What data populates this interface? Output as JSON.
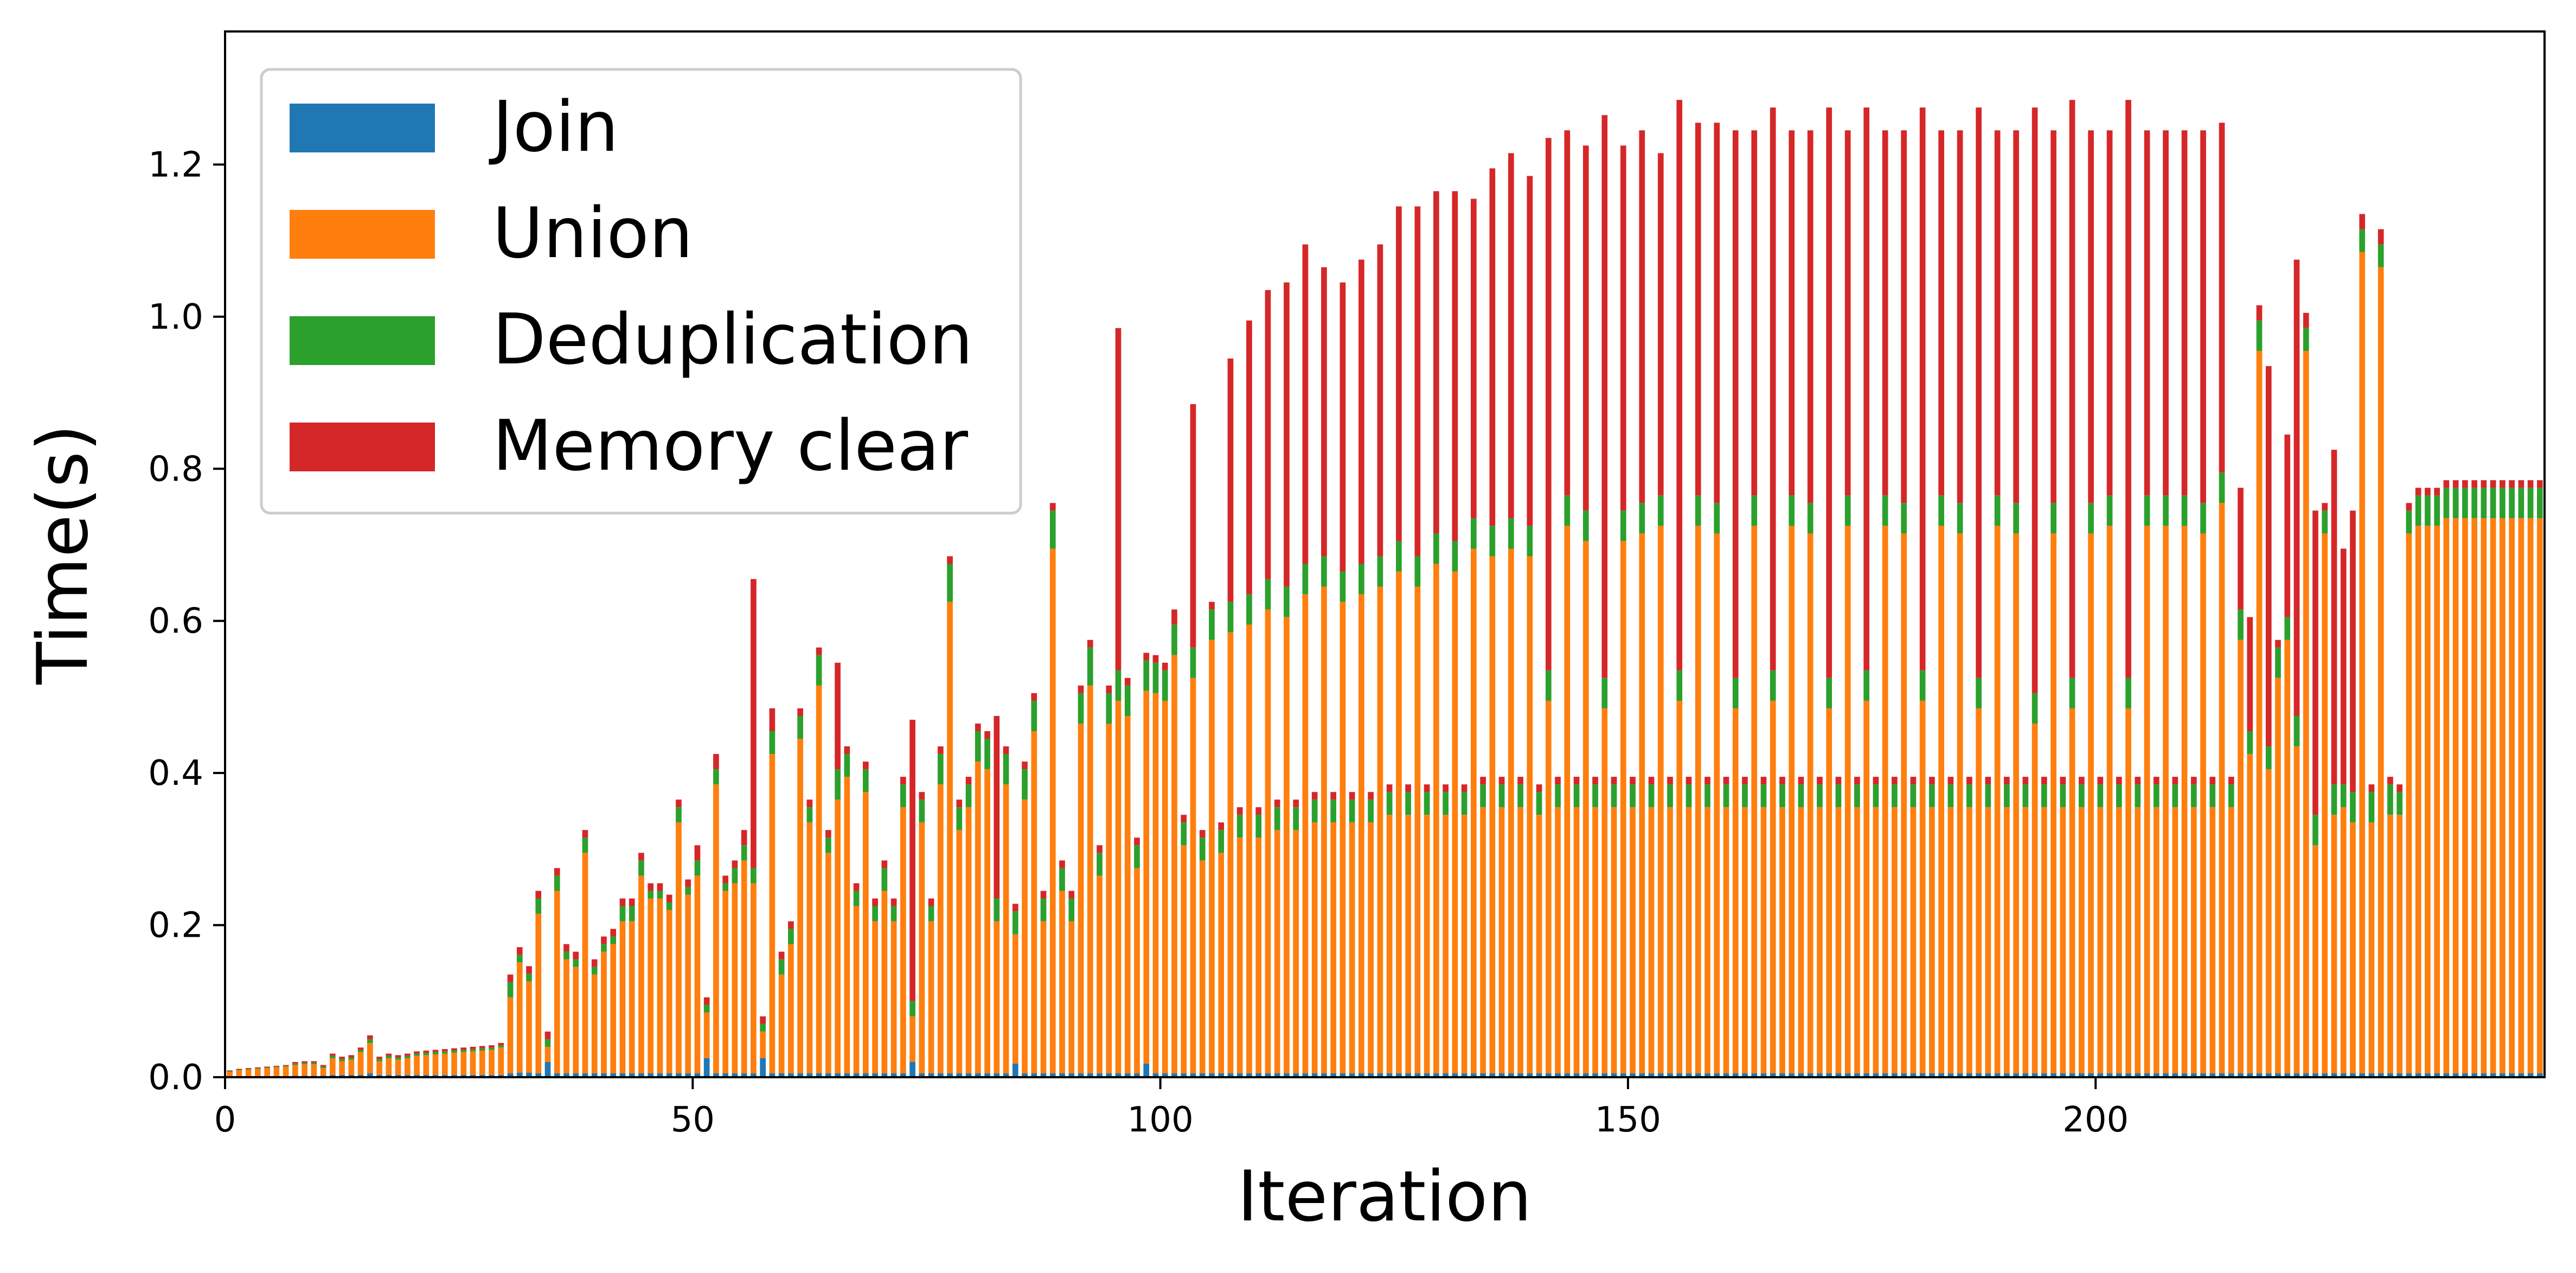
{
  "chart_data": {
    "type": "bar",
    "stacked": true,
    "xlabel": "Iteration",
    "ylabel": "Time(s)",
    "xlim": [
      0,
      248
    ],
    "ylim": [
      0,
      1.375
    ],
    "x_ticks": [
      0,
      50,
      100,
      150,
      200
    ],
    "y_ticks": [
      0.0,
      0.2,
      0.4,
      0.6,
      0.8,
      1.0,
      1.2
    ],
    "y_tick_labels": [
      "0.0",
      "0.2",
      "0.4",
      "0.6",
      "0.8",
      "1.0",
      "1.2"
    ],
    "grid": false,
    "legend_position": "upper-left",
    "series": [
      {
        "name": "Join",
        "color": "#1f77b4",
        "values": [
          0.001,
          0.001,
          0.001,
          0.001,
          0.001,
          0.001,
          0.001,
          0.002,
          0.002,
          0.002,
          0.002,
          0.003,
          0.003,
          0.003,
          0.003,
          0.005,
          0.003,
          0.003,
          0.003,
          0.003,
          0.003,
          0.003,
          0.003,
          0.003,
          0.003,
          0.003,
          0.003,
          0.003,
          0.003,
          0.003,
          0.005,
          0.006,
          0.006,
          0.005,
          0.02,
          0.005,
          0.005,
          0.005,
          0.005,
          0.005,
          0.005,
          0.005,
          0.005,
          0.005,
          0.005,
          0.005,
          0.005,
          0.005,
          0.005,
          0.005,
          0.005,
          0.025,
          0.005,
          0.005,
          0.005,
          0.005,
          0.005,
          0.025,
          0.005,
          0.005,
          0.005,
          0.005,
          0.005,
          0.005,
          0.005,
          0.005,
          0.005,
          0.005,
          0.005,
          0.005,
          0.005,
          0.005,
          0.005,
          0.02,
          0.005,
          0.005,
          0.005,
          0.005,
          0.005,
          0.005,
          0.005,
          0.005,
          0.005,
          0.005,
          0.018,
          0.005,
          0.005,
          0.005,
          0.005,
          0.005,
          0.005,
          0.005,
          0.005,
          0.005,
          0.005,
          0.005,
          0.005,
          0.005,
          0.018,
          0.005,
          0.005,
          0.005,
          0.005,
          0.005,
          0.005,
          0.005,
          0.005,
          0.005,
          0.005,
          0.005,
          0.005,
          0.005,
          0.005,
          0.005,
          0.005,
          0.005,
          0.005,
          0.005,
          0.005,
          0.005,
          0.005,
          0.005,
          0.005,
          0.005,
          0.005,
          0.005,
          0.005,
          0.005,
          0.005,
          0.005,
          0.005,
          0.005,
          0.005,
          0.005,
          0.005,
          0.005,
          0.005,
          0.005,
          0.005,
          0.005,
          0.005,
          0.005,
          0.005,
          0.005,
          0.005,
          0.005,
          0.005,
          0.005,
          0.005,
          0.005,
          0.005,
          0.005,
          0.005,
          0.005,
          0.005,
          0.005,
          0.005,
          0.005,
          0.005,
          0.005,
          0.005,
          0.005,
          0.005,
          0.005,
          0.005,
          0.005,
          0.005,
          0.005,
          0.005,
          0.005,
          0.005,
          0.005,
          0.005,
          0.005,
          0.005,
          0.005,
          0.005,
          0.005,
          0.005,
          0.005,
          0.005,
          0.005,
          0.005,
          0.005,
          0.005,
          0.005,
          0.005,
          0.005,
          0.005,
          0.005,
          0.005,
          0.005,
          0.005,
          0.005,
          0.005,
          0.005,
          0.005,
          0.005,
          0.005,
          0.005,
          0.005,
          0.005,
          0.005,
          0.005,
          0.005,
          0.005,
          0.005,
          0.005,
          0.005,
          0.005,
          0.005,
          0.005,
          0.005,
          0.005,
          0.005,
          0.005,
          0.005,
          0.005,
          0.005,
          0.005,
          0.005,
          0.005,
          0.005,
          0.005,
          0.005,
          0.005,
          0.005,
          0.005,
          0.005,
          0.005,
          0.005,
          0.005,
          0.005,
          0.005,
          0.005,
          0.005,
          0.005,
          0.005,
          0.005,
          0.005,
          0.005,
          0.005,
          0.005,
          0.005,
          0.005,
          0.005,
          0.005,
          0.005
        ]
      },
      {
        "name": "Union",
        "color": "#ff7f0e",
        "values": [
          0.006,
          0.008,
          0.009,
          0.01,
          0.011,
          0.012,
          0.013,
          0.014,
          0.015,
          0.015,
          0.01,
          0.022,
          0.018,
          0.02,
          0.03,
          0.04,
          0.018,
          0.022,
          0.02,
          0.022,
          0.025,
          0.026,
          0.027,
          0.028,
          0.029,
          0.03,
          0.031,
          0.032,
          0.033,
          0.036,
          0.1,
          0.145,
          0.12,
          0.21,
          0.02,
          0.24,
          0.15,
          0.14,
          0.29,
          0.13,
          0.16,
          0.17,
          0.2,
          0.2,
          0.26,
          0.23,
          0.23,
          0.215,
          0.33,
          0.235,
          0.26,
          0.06,
          0.38,
          0.24,
          0.25,
          0.28,
          0.25,
          0.035,
          0.42,
          0.13,
          0.17,
          0.44,
          0.33,
          0.51,
          0.29,
          0.36,
          0.39,
          0.22,
          0.37,
          0.2,
          0.24,
          0.2,
          0.35,
          0.06,
          0.33,
          0.2,
          0.38,
          0.62,
          0.32,
          0.35,
          0.41,
          0.4,
          0.2,
          0.38,
          0.17,
          0.36,
          0.45,
          0.2,
          0.69,
          0.24,
          0.2,
          0.46,
          0.51,
          0.26,
          0.46,
          0.49,
          0.47,
          0.27,
          0.49,
          0.5,
          0.49,
          0.55,
          0.3,
          0.52,
          0.28,
          0.57,
          0.29,
          0.58,
          0.31,
          0.59,
          0.31,
          0.61,
          0.32,
          0.6,
          0.32,
          0.63,
          0.33,
          0.64,
          0.33,
          0.62,
          0.33,
          0.63,
          0.33,
          0.64,
          0.34,
          0.66,
          0.34,
          0.64,
          0.34,
          0.67,
          0.34,
          0.66,
          0.34,
          0.69,
          0.35,
          0.68,
          0.35,
          0.69,
          0.35,
          0.68,
          0.34,
          0.49,
          0.35,
          0.72,
          0.35,
          0.7,
          0.35,
          0.48,
          0.35,
          0.7,
          0.35,
          0.71,
          0.35,
          0.72,
          0.35,
          0.49,
          0.35,
          0.72,
          0.35,
          0.71,
          0.35,
          0.48,
          0.35,
          0.72,
          0.35,
          0.49,
          0.35,
          0.72,
          0.35,
          0.71,
          0.35,
          0.48,
          0.35,
          0.72,
          0.35,
          0.49,
          0.35,
          0.72,
          0.35,
          0.71,
          0.35,
          0.49,
          0.35,
          0.72,
          0.35,
          0.71,
          0.35,
          0.48,
          0.35,
          0.72,
          0.35,
          0.71,
          0.35,
          0.46,
          0.35,
          0.71,
          0.35,
          0.48,
          0.35,
          0.71,
          0.35,
          0.72,
          0.35,
          0.48,
          0.35,
          0.72,
          0.35,
          0.72,
          0.35,
          0.72,
          0.35,
          0.71,
          0.35,
          0.75,
          0.35,
          0.57,
          0.42,
          0.95,
          0.4,
          0.52,
          0.57,
          0.43,
          0.95,
          0.3,
          0.71,
          0.34,
          0.35,
          0.33,
          1.08,
          0.33,
          1.06,
          0.34,
          0.34,
          0.71,
          0.72,
          0.72,
          0.72,
          0.73,
          0.73,
          0.73,
          0.73,
          0.73,
          0.73,
          0.73,
          0.73,
          0.73,
          0.73,
          0.73,
          0.73,
          0.73,
          0.73,
          0.73,
          0.73
        ]
      },
      {
        "name": "Deduplication",
        "color": "#2ca02c",
        "values": [
          0.001,
          0.001,
          0.001,
          0.001,
          0.001,
          0.001,
          0.001,
          0.002,
          0.002,
          0.002,
          0.002,
          0.003,
          0.003,
          0.003,
          0.003,
          0.005,
          0.003,
          0.003,
          0.003,
          0.003,
          0.003,
          0.003,
          0.003,
          0.003,
          0.003,
          0.003,
          0.003,
          0.003,
          0.003,
          0.003,
          0.02,
          0.01,
          0.01,
          0.02,
          0.01,
          0.02,
          0.01,
          0.01,
          0.02,
          0.01,
          0.01,
          0.01,
          0.02,
          0.02,
          0.02,
          0.01,
          0.01,
          0.01,
          0.02,
          0.01,
          0.02,
          0.01,
          0.02,
          0.01,
          0.02,
          0.02,
          0.02,
          0.01,
          0.03,
          0.02,
          0.02,
          0.03,
          0.02,
          0.04,
          0.02,
          0.04,
          0.03,
          0.02,
          0.03,
          0.02,
          0.03,
          0.02,
          0.03,
          0.02,
          0.03,
          0.02,
          0.04,
          0.05,
          0.03,
          0.03,
          0.04,
          0.04,
          0.03,
          0.04,
          0.03,
          0.04,
          0.04,
          0.03,
          0.05,
          0.03,
          0.03,
          0.04,
          0.05,
          0.03,
          0.04,
          0.04,
          0.04,
          0.03,
          0.04,
          0.04,
          0.04,
          0.04,
          0.03,
          0.04,
          0.03,
          0.04,
          0.03,
          0.04,
          0.03,
          0.04,
          0.03,
          0.04,
          0.03,
          0.04,
          0.03,
          0.04,
          0.03,
          0.04,
          0.03,
          0.04,
          0.03,
          0.04,
          0.03,
          0.04,
          0.03,
          0.04,
          0.03,
          0.04,
          0.03,
          0.04,
          0.03,
          0.04,
          0.03,
          0.04,
          0.03,
          0.04,
          0.03,
          0.04,
          0.03,
          0.04,
          0.03,
          0.04,
          0.03,
          0.04,
          0.03,
          0.04,
          0.03,
          0.04,
          0.03,
          0.04,
          0.03,
          0.04,
          0.03,
          0.04,
          0.03,
          0.04,
          0.03,
          0.04,
          0.03,
          0.04,
          0.03,
          0.04,
          0.03,
          0.04,
          0.03,
          0.04,
          0.03,
          0.04,
          0.03,
          0.04,
          0.03,
          0.04,
          0.03,
          0.04,
          0.03,
          0.04,
          0.03,
          0.04,
          0.03,
          0.04,
          0.03,
          0.04,
          0.03,
          0.04,
          0.03,
          0.04,
          0.03,
          0.04,
          0.03,
          0.04,
          0.03,
          0.04,
          0.03,
          0.04,
          0.03,
          0.04,
          0.03,
          0.04,
          0.03,
          0.04,
          0.03,
          0.04,
          0.03,
          0.04,
          0.03,
          0.04,
          0.03,
          0.04,
          0.03,
          0.04,
          0.03,
          0.04,
          0.03,
          0.04,
          0.03,
          0.04,
          0.03,
          0.04,
          0.03,
          0.04,
          0.03,
          0.04,
          0.03,
          0.04,
          0.03,
          0.04,
          0.03,
          0.04,
          0.03,
          0.04,
          0.03,
          0.04,
          0.03,
          0.03,
          0.04,
          0.04,
          0.04,
          0.04,
          0.04,
          0.04,
          0.04,
          0.04,
          0.04,
          0.04,
          0.04,
          0.04,
          0.04,
          0.04,
          0.04,
          0.04,
          0.04,
          0.04,
          0.04,
          0.04
        ]
      },
      {
        "name": "Memory clear",
        "color": "#d62728",
        "values": [
          0.001,
          0.001,
          0.001,
          0.001,
          0.001,
          0.001,
          0.001,
          0.002,
          0.002,
          0.002,
          0.002,
          0.003,
          0.003,
          0.003,
          0.003,
          0.005,
          0.003,
          0.003,
          0.003,
          0.003,
          0.003,
          0.003,
          0.003,
          0.003,
          0.003,
          0.003,
          0.003,
          0.003,
          0.003,
          0.003,
          0.01,
          0.01,
          0.01,
          0.01,
          0.01,
          0.01,
          0.01,
          0.01,
          0.01,
          0.01,
          0.01,
          0.01,
          0.01,
          0.01,
          0.01,
          0.01,
          0.01,
          0.01,
          0.01,
          0.01,
          0.02,
          0.01,
          0.02,
          0.01,
          0.01,
          0.02,
          0.38,
          0.01,
          0.03,
          0.01,
          0.01,
          0.01,
          0.01,
          0.01,
          0.01,
          0.14,
          0.01,
          0.01,
          0.01,
          0.01,
          0.01,
          0.01,
          0.01,
          0.37,
          0.01,
          0.01,
          0.01,
          0.01,
          0.01,
          0.01,
          0.01,
          0.01,
          0.24,
          0.01,
          0.01,
          0.01,
          0.01,
          0.01,
          0.01,
          0.01,
          0.01,
          0.01,
          0.01,
          0.01,
          0.01,
          0.45,
          0.01,
          0.01,
          0.01,
          0.01,
          0.01,
          0.02,
          0.01,
          0.32,
          0.01,
          0.01,
          0.01,
          0.32,
          0.01,
          0.36,
          0.01,
          0.38,
          0.01,
          0.4,
          0.01,
          0.42,
          0.01,
          0.38,
          0.01,
          0.38,
          0.01,
          0.4,
          0.01,
          0.41,
          0.01,
          0.44,
          0.01,
          0.46,
          0.01,
          0.45,
          0.01,
          0.46,
          0.01,
          0.42,
          0.01,
          0.47,
          0.01,
          0.48,
          0.01,
          0.46,
          0.01,
          0.7,
          0.01,
          0.48,
          0.01,
          0.48,
          0.01,
          0.74,
          0.01,
          0.48,
          0.01,
          0.49,
          0.01,
          0.45,
          0.01,
          0.75,
          0.01,
          0.49,
          0.01,
          0.5,
          0.01,
          0.72,
          0.01,
          0.48,
          0.01,
          0.74,
          0.01,
          0.48,
          0.01,
          0.49,
          0.01,
          0.75,
          0.01,
          0.48,
          0.01,
          0.74,
          0.01,
          0.48,
          0.01,
          0.49,
          0.01,
          0.74,
          0.01,
          0.48,
          0.01,
          0.49,
          0.01,
          0.75,
          0.01,
          0.48,
          0.01,
          0.49,
          0.01,
          0.77,
          0.01,
          0.49,
          0.01,
          0.76,
          0.01,
          0.49,
          0.01,
          0.48,
          0.01,
          0.76,
          0.01,
          0.48,
          0.01,
          0.48,
          0.01,
          0.48,
          0.01,
          0.49,
          0.01,
          0.46,
          0.01,
          0.16,
          0.15,
          0.02,
          0.5,
          0.01,
          0.24,
          0.6,
          0.02,
          0.4,
          0.01,
          0.44,
          0.31,
          0.37,
          0.02,
          0.01,
          0.02,
          0.01,
          0.01,
          0.01,
          0.01,
          0.01,
          0.01,
          0.01,
          0.01,
          0.01,
          0.01,
          0.01,
          0.01,
          0.01,
          0.01,
          0.01,
          0.01,
          0.01,
          0.01,
          0.01,
          0.01,
          0.01,
          0.01,
          0.01,
          0.01,
          0.01
        ]
      }
    ]
  }
}
